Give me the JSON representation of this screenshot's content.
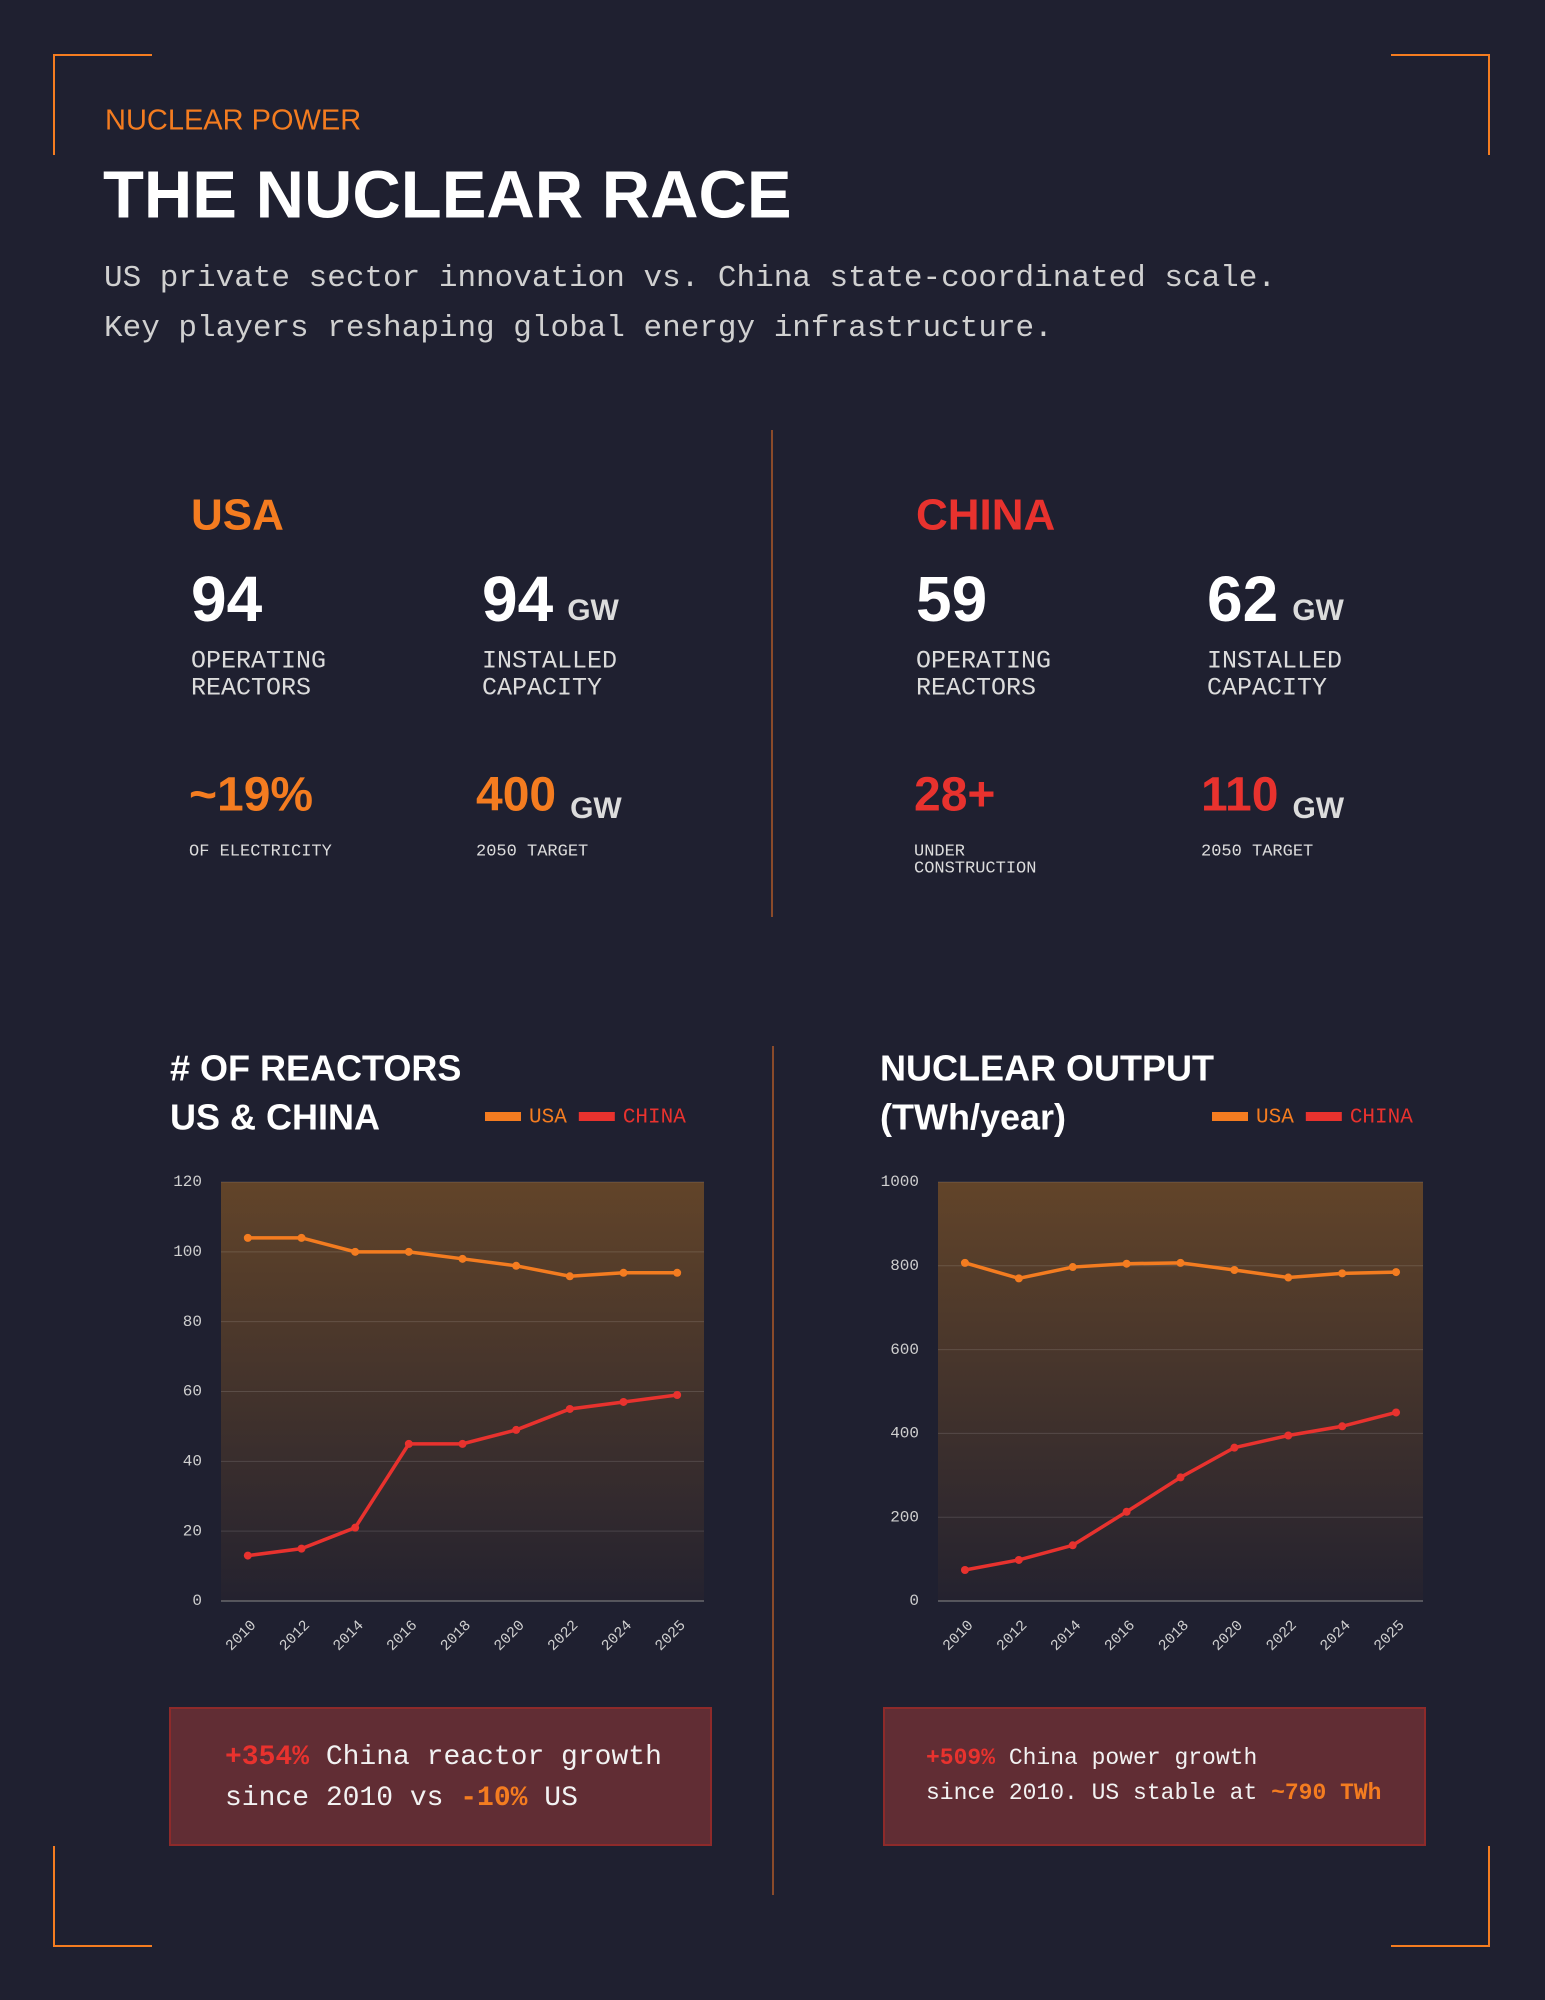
{
  "header": {
    "kicker": "NUCLEAR POWER",
    "title": "THE NUCLEAR RACE",
    "description": [
      "US private sector innovation vs. China state-coordinated scale.",
      "Key players reshaping global energy infrastructure."
    ]
  },
  "countries": [
    {
      "name": "USA",
      "color": "#f47c20",
      "stats": [
        {
          "value": "94",
          "label": [
            "OPERATING",
            "REACTORS"
          ]
        },
        {
          "value": "94",
          "unit": "GW",
          "label": [
            "INSTALLED",
            "CAPACITY"
          ]
        },
        {
          "value": "~19%",
          "label": [
            "OF ELECTRICITY"
          ]
        },
        {
          "value": "400",
          "unit": "GW",
          "label": [
            "2050 TARGET"
          ]
        }
      ]
    },
    {
      "name": "CHINA",
      "color": "#e8322e",
      "stats": [
        {
          "value": "59",
          "label": [
            "OPERATING",
            "REACTORS"
          ]
        },
        {
          "value": "62",
          "unit": "GW",
          "label": [
            "INSTALLED",
            "CAPACITY"
          ]
        },
        {
          "value": "28+",
          "label": [
            "UNDER",
            "CONSTRUCTION"
          ]
        },
        {
          "value": "110",
          "unit": "GW",
          "label": [
            "2050 TARGET"
          ]
        }
      ]
    }
  ],
  "chart_data": [
    {
      "type": "line",
      "title": "# OF REACTORS",
      "subtitle": "US & CHINA",
      "categories": [
        "2010",
        "2012",
        "2014",
        "2016",
        "2018",
        "2020",
        "2022",
        "2024",
        "2025"
      ],
      "series": [
        {
          "name": "USA",
          "color": "#f47c20",
          "values": [
            104,
            104,
            100,
            100,
            98,
            96,
            93,
            94,
            94
          ]
        },
        {
          "name": "CHINA",
          "color": "#e8322e",
          "values": [
            13,
            15,
            21,
            45,
            45,
            49,
            55,
            57,
            59
          ]
        }
      ],
      "ylim": [
        0,
        120
      ],
      "yticks": [
        0,
        20,
        40,
        60,
        80,
        100,
        120
      ],
      "grid": true
    },
    {
      "type": "line",
      "title": "NUCLEAR OUTPUT",
      "subtitle": "(TWh/year)",
      "categories": [
        "2010",
        "2012",
        "2014",
        "2016",
        "2018",
        "2020",
        "2022",
        "2024",
        "2025"
      ],
      "series": [
        {
          "name": "USA",
          "color": "#f47c20",
          "values": [
            807,
            770,
            797,
            805,
            807,
            790,
            772,
            782,
            785
          ]
        },
        {
          "name": "CHINA",
          "color": "#e8322e",
          "values": [
            74,
            98,
            133,
            213,
            295,
            366,
            395,
            417,
            450
          ]
        }
      ],
      "ylim": [
        0,
        1000
      ],
      "yticks": [
        0,
        200,
        400,
        600,
        800,
        1000
      ],
      "grid": true
    }
  ],
  "callouts": [
    {
      "lines": [
        [
          {
            "text": "+354%",
            "color": "#e8322e"
          },
          {
            "text": " China reactor growth",
            "color": "#f2f2f2"
          }
        ],
        [
          {
            "text": "since 2010 vs ",
            "color": "#f2f2f2"
          },
          {
            "text": "-10%",
            "color": "#f47c20"
          },
          {
            "text": " US",
            "color": "#f2f2f2"
          }
        ]
      ]
    },
    {
      "lines": [
        [
          {
            "text": "+509%",
            "color": "#e8322e"
          },
          {
            "text": " China power growth",
            "color": "#f2f2f2"
          }
        ],
        [
          {
            "text": "since 2010. US stable at ",
            "color": "#f2f2f2"
          },
          {
            "text": "~790 TWh",
            "color": "#f47c20"
          }
        ]
      ]
    }
  ]
}
